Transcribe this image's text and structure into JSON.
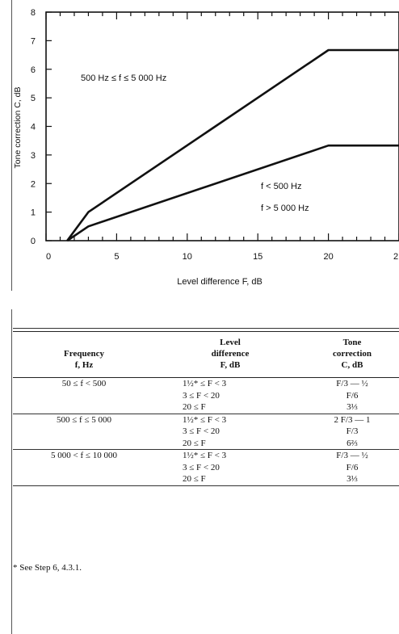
{
  "chart_data": {
    "type": "line",
    "xlabel": "Level difference F, dB",
    "ylabel": "Tone correction C, dB",
    "xlim": [
      0,
      25
    ],
    "ylim": [
      0,
      8
    ],
    "x_ticks": [
      "0",
      "5",
      "10",
      "15",
      "20",
      "2"
    ],
    "y_ticks": [
      "0",
      "1",
      "2",
      "3",
      "4",
      "5",
      "6",
      "7",
      "8"
    ],
    "series": [
      {
        "name": "500 Hz ≤ f ≤ 5 000 Hz",
        "x": [
          1.5,
          3,
          20,
          25
        ],
        "y": [
          0,
          1,
          6.67,
          6.67
        ]
      },
      {
        "name": "f < 500 Hz / f > 5 000 Hz",
        "x": [
          1.5,
          3,
          20,
          25
        ],
        "y": [
          0,
          0.5,
          3.33,
          3.33
        ]
      }
    ],
    "annotations": {
      "upper": "500 Hz ≤ f ≤ 5 000 Hz",
      "lower_1": "f < 500 Hz",
      "lower_2": "f > 5 000 Hz"
    },
    "grid": false
  },
  "table": {
    "headers": {
      "frequency": [
        "Frequency",
        "f, Hz"
      ],
      "level": [
        "Level",
        "difference",
        "F, dB"
      ],
      "correction": [
        "Tone",
        "correction",
        "C, dB"
      ]
    },
    "groups": [
      {
        "frequency": "50 ≤ f < 500",
        "level": [
          "1½* ≤ F < 3",
          "3 ≤ F < 20",
          "20 ≤ F"
        ],
        "correction": [
          "F/3 — ½",
          "F/6",
          "3⅓"
        ]
      },
      {
        "frequency": "500 ≤ f ≤ 5 000",
        "level": [
          "1½* ≤ F < 3",
          "3 ≤ F < 20",
          "20 ≤ F"
        ],
        "correction": [
          "2 F/3 — 1",
          "F/3",
          "6⅔"
        ]
      },
      {
        "frequency": "5 000 < f ≤ 10 000",
        "level": [
          "1½* ≤ F < 3",
          "3 ≤ F < 20",
          "20 ≤ F"
        ],
        "correction": [
          "F/3 — ½",
          "F/6",
          "3⅓"
        ]
      }
    ]
  },
  "footnote": "* See Step 6, 4.3.1."
}
